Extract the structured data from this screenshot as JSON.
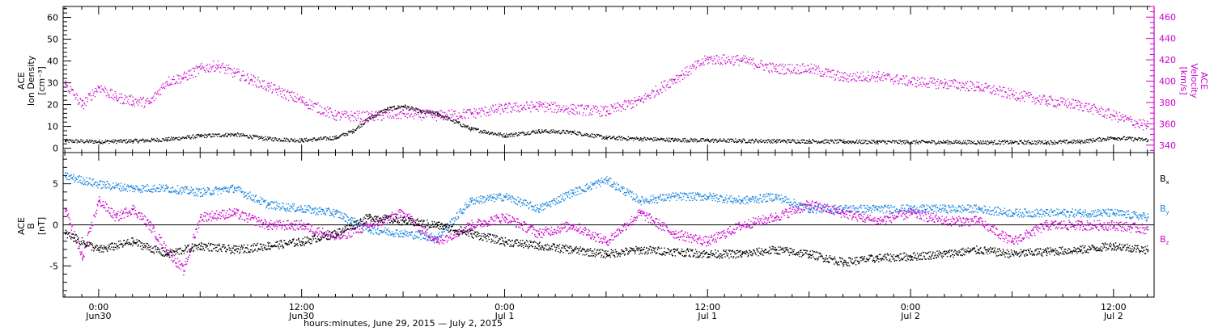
{
  "chart_data": [
    {
      "type": "scatter",
      "panel": "top",
      "left_axis": {
        "label": [
          "ACE",
          "Ion Density",
          "[cm⁻³]"
        ],
        "range": [
          -2,
          65
        ],
        "ticks": [
          0,
          10,
          20,
          30,
          40,
          50,
          60
        ],
        "tick_labels": [
          "0",
          "10",
          "20",
          "30",
          "40",
          "50",
          "60"
        ]
      },
      "right_axis": {
        "label": [
          "ACE",
          "Velocity",
          "[km/s]"
        ],
        "range": [
          333,
          470
        ],
        "ticks": [
          340,
          360,
          380,
          400,
          420,
          440,
          460
        ],
        "tick_labels": [
          "340",
          "360",
          "380",
          "400",
          "420",
          "440",
          "460"
        ]
      },
      "time_range_hours": [
        -2.1,
        62.4
      ],
      "series": [
        {
          "key": "density",
          "axis": "left",
          "color": "#000000",
          "x": [
            -2,
            0,
            2,
            4,
            6,
            8,
            10,
            12,
            14,
            15,
            16,
            17,
            18,
            19,
            20,
            22,
            24,
            26,
            28,
            30,
            32,
            34,
            36,
            38,
            40,
            42,
            44,
            46,
            48,
            50,
            52,
            54,
            56,
            58,
            60,
            62
          ],
          "y": [
            3.5,
            3.2,
            3.5,
            4.2,
            5.8,
            6.5,
            4.5,
            3.8,
            5,
            8,
            14,
            18,
            19.5,
            17,
            16,
            9,
            6,
            8,
            7.5,
            5,
            4.5,
            4,
            3.8,
            3.6,
            3.5,
            3.4,
            3.2,
            3.1,
            3,
            3,
            2.9,
            2.9,
            2.9,
            3.2,
            5,
            4
          ]
        },
        {
          "key": "velocity",
          "axis": "right",
          "color": "#cc00cc",
          "x": [
            -2,
            -1,
            0,
            1,
            2,
            3,
            4,
            5,
            6,
            7,
            8,
            9,
            10,
            12,
            14,
            16,
            18,
            20,
            22,
            24,
            26,
            28,
            30,
            32,
            34,
            36,
            38,
            40,
            42,
            44,
            46,
            48,
            50,
            52,
            54,
            56,
            58,
            60,
            62
          ],
          "y": [
            398,
            378,
            395,
            385,
            382,
            380,
            400,
            404,
            412,
            415,
            408,
            402,
            395,
            382,
            368,
            367,
            370,
            368,
            370,
            375,
            377,
            374,
            372,
            382,
            402,
            421,
            420,
            412,
            412,
            404,
            405,
            400,
            398,
            395,
            388,
            382,
            378,
            368,
            358
          ]
        }
      ]
    },
    {
      "type": "scatter",
      "panel": "bottom",
      "axis": {
        "label": [
          "ACE",
          "B",
          "[nT]"
        ],
        "range": [
          -8.8,
          8.8
        ],
        "ticks": [
          -5,
          0,
          5
        ],
        "tick_labels": [
          "-5",
          "0",
          "5"
        ]
      },
      "legend": {
        "placement": "right",
        "entries": [
          "Bx",
          "By",
          "Bz"
        ]
      },
      "zero_line": true,
      "time_range_hours": [
        -2.1,
        62.4
      ],
      "series": [
        {
          "key": "Bx",
          "color": "#000000",
          "x": [
            -2,
            0,
            2,
            4,
            6,
            8,
            10,
            12,
            14,
            16,
            18,
            20,
            22,
            24,
            26,
            28,
            30,
            32,
            34,
            36,
            38,
            40,
            42,
            44,
            46,
            48,
            50,
            52,
            54,
            56,
            58,
            60,
            62
          ],
          "y": [
            -1,
            -3,
            -2,
            -3.5,
            -2.5,
            -3,
            -2.5,
            -2,
            -1,
            1,
            0.5,
            0,
            -1,
            -2,
            -2.5,
            -3,
            -3.5,
            -3,
            -3.2,
            -3.5,
            -3.5,
            -3,
            -3.5,
            -4.5,
            -4,
            -3.8,
            -3.5,
            -3,
            -3.5,
            -3.2,
            -3,
            -2.5,
            -3
          ]
        },
        {
          "key": "By",
          "color": "#1a86e0",
          "x": [
            -2,
            0,
            2,
            4,
            6,
            8,
            10,
            12,
            14,
            16,
            18,
            20,
            22,
            24,
            26,
            28,
            30,
            32,
            34,
            36,
            38,
            40,
            42,
            44,
            46,
            48,
            50,
            52,
            54,
            56,
            58,
            60,
            62
          ],
          "y": [
            6,
            5,
            4.5,
            4.5,
            4,
            4.5,
            2.5,
            2,
            1.5,
            -0.5,
            -1,
            -1.5,
            3,
            3.5,
            2,
            4,
            5.5,
            3,
            3.5,
            3.5,
            3,
            3.5,
            2,
            2,
            2,
            2,
            2,
            2,
            1.5,
            1.5,
            1.5,
            1.5,
            1
          ]
        },
        {
          "key": "Bz",
          "color": "#cc00cc",
          "x": [
            -2,
            -1,
            0,
            1,
            2,
            3,
            4,
            5,
            6,
            8,
            10,
            12,
            14,
            16,
            18,
            20,
            22,
            24,
            26,
            28,
            30,
            32,
            34,
            36,
            38,
            40,
            42,
            44,
            46,
            48,
            50,
            52,
            54,
            56,
            58,
            60,
            62
          ],
          "y": [
            2,
            -4,
            3,
            1,
            2,
            0,
            -3,
            -5.5,
            1,
            1.5,
            0,
            0,
            -1.5,
            0,
            1.5,
            -2,
            0,
            1,
            -1,
            0,
            -2,
            1.5,
            -1,
            -2,
            0,
            1,
            2.5,
            1.5,
            0.5,
            1.5,
            0.5,
            0.5,
            -2,
            0,
            0,
            0,
            -0.5
          ]
        }
      ]
    }
  ],
  "legend_labels": {
    "bx_main": "B",
    "bx_sub": "x",
    "by_main": "B",
    "by_sub": "y",
    "bz_main": "B",
    "bz_sub": "z"
  },
  "time_axis": {
    "major_hours": [
      0,
      12,
      24,
      36,
      48,
      60
    ],
    "major_labels": [
      "0:00",
      "12:00",
      "0:00",
      "12:00",
      "0:00",
      "12:00"
    ],
    "date_labels": [
      "Jun30",
      "Jun30",
      "Jul 1",
      "Jul 1",
      "Jul 2",
      "Jul 2"
    ],
    "minor_step_hours": 1,
    "title": "hours:minutes, June 29, 2015 — July  2, 2015"
  },
  "colors": {
    "density": "#000000",
    "velocity": "#cc00cc",
    "bx": "#000000",
    "by": "#1a86e0",
    "bz": "#cc00cc",
    "right_axis": "#cc00cc"
  }
}
